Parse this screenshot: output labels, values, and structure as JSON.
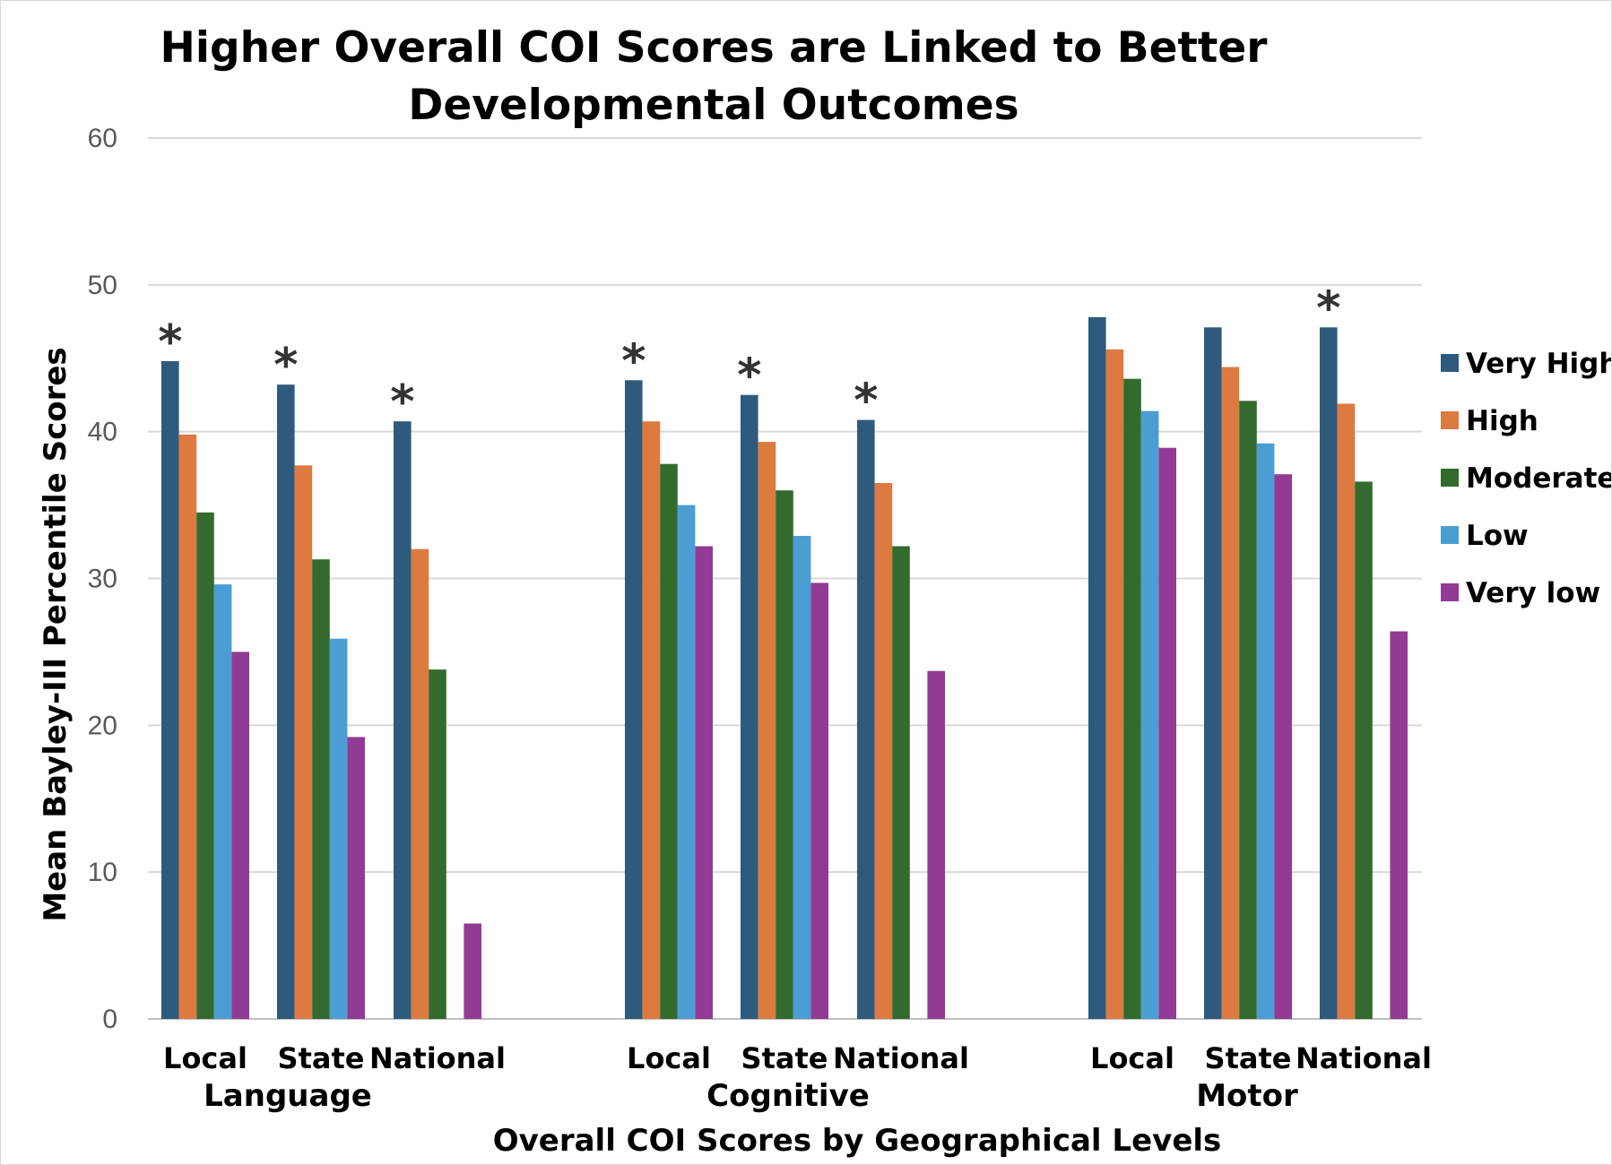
{
  "chart_data": {
    "type": "bar",
    "title_line1": "Higher Overall COI Scores are Linked to Better",
    "title_line2": "Developmental Outcomes",
    "xlabel": "Overall COI Scores by Geographical Levels",
    "ylabel": "Mean Bayley-III Percentile Scores",
    "ylim": [
      0,
      60
    ],
    "yticks": [
      "0",
      "10",
      "20",
      "30",
      "40",
      "50",
      "60"
    ],
    "grid": true,
    "legend_position": "right",
    "groups": [
      "Language",
      "Cognitive",
      "Motor"
    ],
    "categories": [
      "Local",
      "State",
      "National",
      "Local",
      "State",
      "National",
      "Local",
      "State",
      "National"
    ],
    "significance_marker": "*",
    "significant": [
      true,
      true,
      true,
      true,
      true,
      true,
      false,
      false,
      true
    ],
    "series": [
      {
        "name": "Very High",
        "color": "#2e5a7d",
        "values": [
          44.8,
          43.2,
          40.7,
          43.5,
          42.5,
          40.8,
          47.8,
          47.1,
          47.1
        ]
      },
      {
        "name": "High",
        "color": "#dd7a40",
        "values": [
          39.8,
          37.7,
          32.0,
          40.7,
          39.3,
          36.5,
          45.6,
          44.4,
          41.9
        ]
      },
      {
        "name": "Moderate",
        "color": "#336b2e",
        "values": [
          34.5,
          31.3,
          23.8,
          37.8,
          36.0,
          32.2,
          43.6,
          42.1,
          36.6
        ]
      },
      {
        "name": "Low",
        "color": "#4a9ed3",
        "values": [
          29.6,
          25.9,
          null,
          35.0,
          32.9,
          null,
          41.4,
          39.2,
          null
        ]
      },
      {
        "name": "Very low",
        "color": "#923b94",
        "values": [
          25.0,
          19.2,
          6.5,
          32.2,
          29.7,
          23.7,
          38.9,
          37.1,
          26.4
        ]
      }
    ]
  }
}
